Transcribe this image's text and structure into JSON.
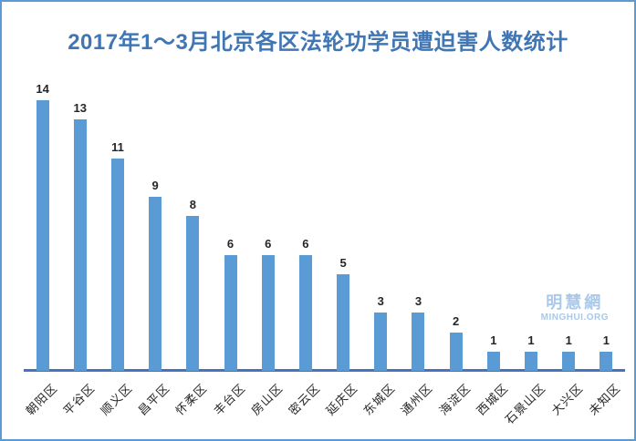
{
  "page": {
    "title": "2017年1～3月北京各区法轮功学员遭迫害人数统计"
  },
  "watermark": {
    "name": "明慧網",
    "org": "MINGHUI.ORG"
  },
  "colors": {
    "bar": "#5B9BD5",
    "axis": "#4472C4",
    "title": "#4076B4",
    "border": "#5B9BD5",
    "watermark": "#A9C8EA",
    "label": "#262626"
  },
  "chart_data": {
    "type": "bar",
    "title": "2017年1～3月北京各区法轮功学员遭迫害人数统计",
    "categories": [
      "朝阳区",
      "平谷区",
      "顺义区",
      "昌平区",
      "怀柔区",
      "丰台区",
      "房山区",
      "密云区",
      "延庆区",
      "东城区",
      "通州区",
      "海淀区",
      "西城区",
      "石景山区",
      "大兴区",
      "未知区"
    ],
    "values": [
      14,
      13,
      11,
      9,
      8,
      6,
      6,
      6,
      5,
      3,
      3,
      2,
      1,
      1,
      1,
      1
    ],
    "xlabel": "",
    "ylabel": "",
    "ylim": [
      0,
      15
    ],
    "grid": false,
    "legend": false,
    "data_labels": true,
    "x_tick_rotation": 45
  }
}
